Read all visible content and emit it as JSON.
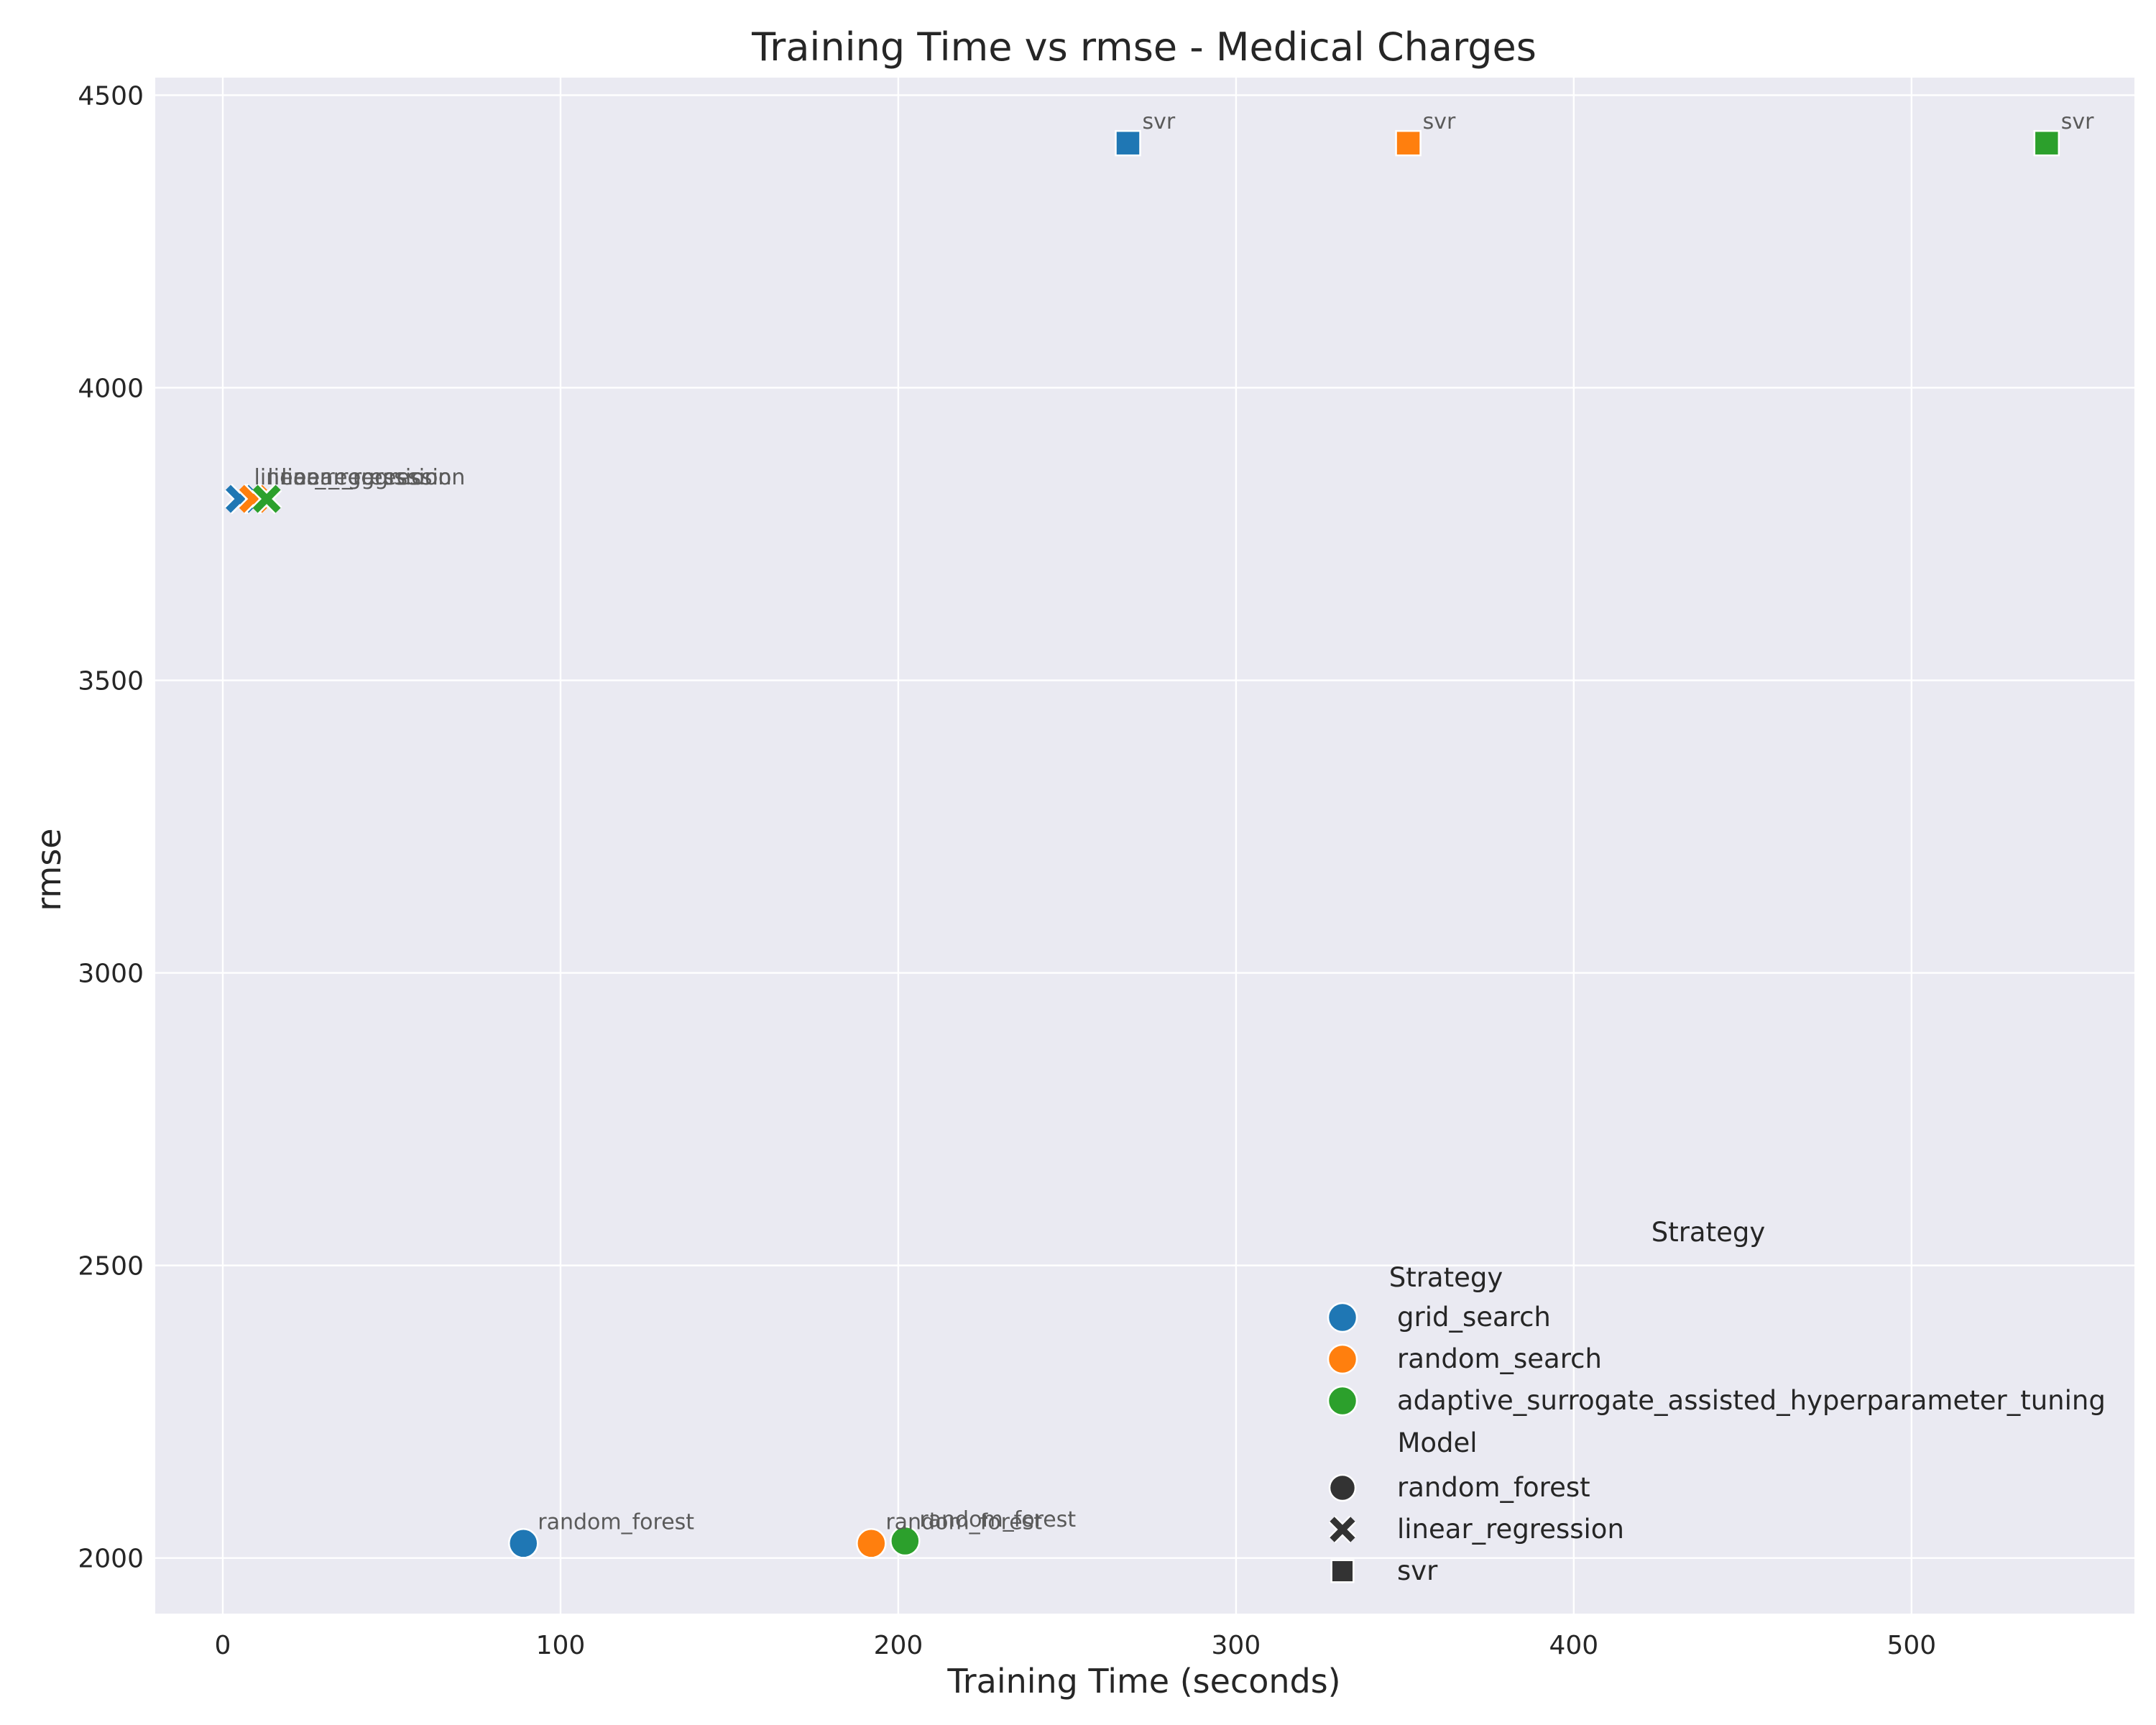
{
  "chart_data": {
    "type": "scatter",
    "title": "Training Time vs rmse - Medical Charges",
    "xlabel": "Training Time (seconds)",
    "ylabel": "rmse",
    "xlim": [
      -20,
      566
    ],
    "ylim": [
      1905,
      4530
    ],
    "xticks": [
      0,
      100,
      200,
      300,
      400,
      500
    ],
    "yticks": [
      2000,
      2500,
      3000,
      3500,
      4000,
      4500
    ],
    "grid": true,
    "legend_position": "lower-right",
    "outer_legend_title": "Strategy",
    "legend": {
      "hue_title": "Strategy",
      "style_title": "Model",
      "hue_entries": [
        {
          "label": "grid_search",
          "color": "#1f77b4"
        },
        {
          "label": "random_search",
          "color": "#ff7f0e"
        },
        {
          "label": "adaptive_surrogate_assisted_hyperparameter_tuning",
          "color": "#2ca02c"
        }
      ],
      "style_entries": [
        {
          "label": "random_forest",
          "marker": "circle"
        },
        {
          "label": "linear_regression",
          "marker": "x"
        },
        {
          "label": "svr",
          "marker": "square"
        }
      ]
    },
    "points": [
      {
        "strategy": "grid_search",
        "model": "random_forest",
        "x": 89,
        "y": 2025,
        "label": "random_forest"
      },
      {
        "strategy": "random_search",
        "model": "random_forest",
        "x": 192,
        "y": 2025,
        "label": "random_forest"
      },
      {
        "strategy": "adaptive_surrogate_assisted_hyperparameter_tuning",
        "model": "random_forest",
        "x": 202,
        "y": 2029,
        "label": "random_forest"
      },
      {
        "strategy": "grid_search",
        "model": "linear_regression",
        "x": 5,
        "y": 3810,
        "label": "linear_regression"
      },
      {
        "strategy": "random_search",
        "model": "linear_regression",
        "x": 9,
        "y": 3810,
        "label": "linear_regression"
      },
      {
        "strategy": "adaptive_surrogate_assisted_hyperparameter_tuning",
        "model": "linear_regression",
        "x": 13,
        "y": 3810,
        "label": "linear_regression"
      },
      {
        "strategy": "grid_search",
        "model": "svr",
        "x": 268,
        "y": 4418,
        "label": "svr"
      },
      {
        "strategy": "random_search",
        "model": "svr",
        "x": 351,
        "y": 4418,
        "label": "svr"
      },
      {
        "strategy": "adaptive_surrogate_assisted_hyperparameter_tuning",
        "model": "svr",
        "x": 540,
        "y": 4418,
        "label": "svr"
      }
    ]
  }
}
